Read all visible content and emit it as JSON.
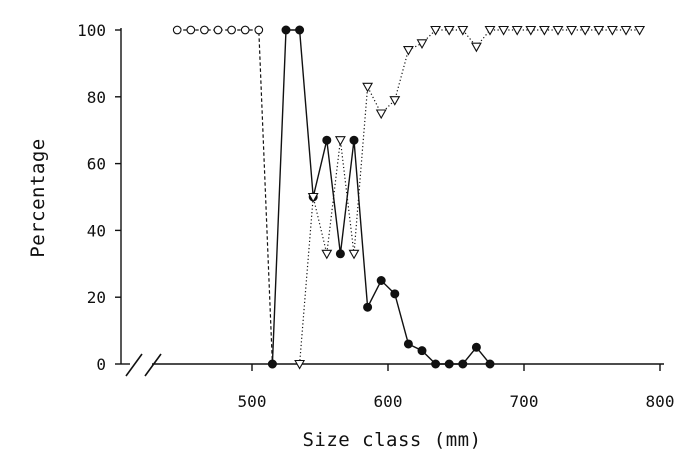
{
  "chart_data": {
    "type": "line",
    "xlabel": "Size class (mm)",
    "ylabel": "Percentage",
    "xlim": [
      400,
      800
    ],
    "ylim": [
      0,
      100
    ],
    "x_ticks": [
      "500",
      "600",
      "700",
      "800"
    ],
    "y_ticks": [
      "0",
      "20",
      "40",
      "60",
      "80",
      "100"
    ],
    "axis_break": true,
    "grid": false,
    "series": [
      {
        "marker": "open-circle",
        "line": "dashed",
        "x": [
          445,
          455,
          465,
          475,
          485,
          495,
          505,
          515
        ],
        "y": [
          100,
          100,
          100,
          100,
          100,
          100,
          100,
          0
        ]
      },
      {
        "marker": "filled-circle",
        "line": "solid",
        "x": [
          515,
          525,
          535,
          545,
          555,
          565,
          575,
          585,
          595,
          605,
          615,
          625,
          635,
          645,
          655,
          665,
          675
        ],
        "y": [
          0,
          100,
          100,
          50,
          67,
          33,
          67,
          17,
          25,
          21,
          6,
          4,
          0,
          0,
          0,
          5,
          0
        ]
      },
      {
        "marker": "open-triangle",
        "line": "dotted",
        "x": [
          535,
          545,
          555,
          565,
          575,
          585,
          595,
          605,
          615,
          625,
          635,
          645,
          655,
          665,
          675,
          685,
          695,
          705,
          715,
          725,
          735,
          745,
          755,
          765,
          775,
          785
        ],
        "y": [
          0,
          50,
          33,
          67,
          33,
          83,
          75,
          79,
          94,
          96,
          100,
          100,
          100,
          95,
          100,
          100,
          100,
          100,
          100,
          100,
          100,
          100,
          100,
          100,
          100,
          100
        ]
      }
    ]
  }
}
